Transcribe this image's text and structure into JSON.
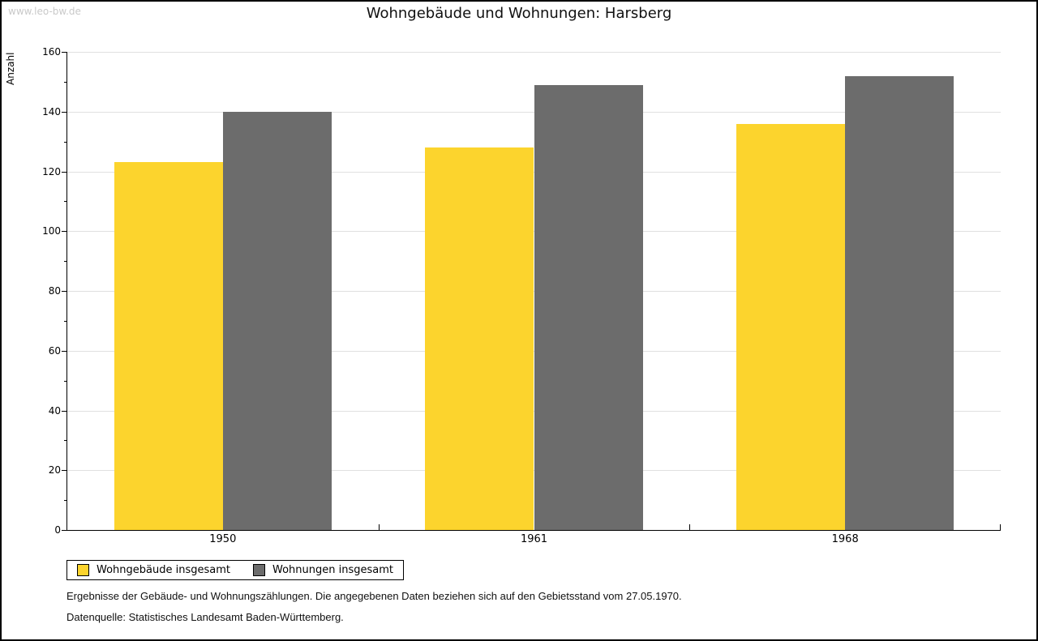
{
  "page": {
    "watermark": "www.leo-bw.de",
    "background": "#ffffff",
    "border_color": "#000000",
    "gridline_color": "#e0e0e0",
    "watermark_color": "#c9c9c9"
  },
  "chart_data": {
    "type": "bar",
    "title": "Wohngebäude und Wohnungen: Harsberg",
    "ylabel": "Anzahl",
    "xlabel": "",
    "categories": [
      "1950",
      "1961",
      "1968"
    ],
    "series": [
      {
        "name": "Wohngebäude insgesamt",
        "color": "#fcd42d",
        "values": [
          123,
          128,
          136
        ]
      },
      {
        "name": "Wohnungen insgesamt",
        "color": "#6c6c6c",
        "values": [
          140,
          149,
          152
        ]
      }
    ],
    "ylim": [
      0,
      160
    ],
    "y_major_step": 20,
    "y_minor_step": 10,
    "grid": true,
    "legend_position": "bottom-left"
  },
  "footnotes": [
    "Ergebnisse der Gebäude- und Wohnungszählungen. Die angegebenen Daten beziehen sich auf den Gebietsstand vom 27.05.1970.",
    "Datenquelle: Statistisches Landesamt Baden-Württemberg."
  ]
}
